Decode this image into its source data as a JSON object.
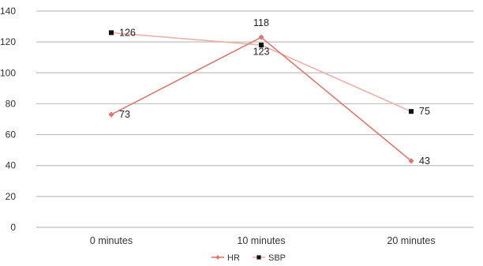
{
  "chart_data": {
    "type": "line",
    "categories": [
      "0 minutes",
      "10 minutes",
      "20 minutes"
    ],
    "series": [
      {
        "name": "HR",
        "values": [
          73,
          123,
          43
        ],
        "color": "#d97a72",
        "marker": "diamond"
      },
      {
        "name": "SBP",
        "values": [
          126,
          118,
          75
        ],
        "color": "#f0b0aa",
        "marker": "square",
        "marker_color": "#111111"
      }
    ],
    "ylim": [
      0,
      140
    ],
    "yticks": [
      0,
      20,
      40,
      60,
      80,
      100,
      120,
      140
    ],
    "grid": true,
    "legend": "bottom",
    "title": "",
    "xlabel": "",
    "ylabel": ""
  }
}
